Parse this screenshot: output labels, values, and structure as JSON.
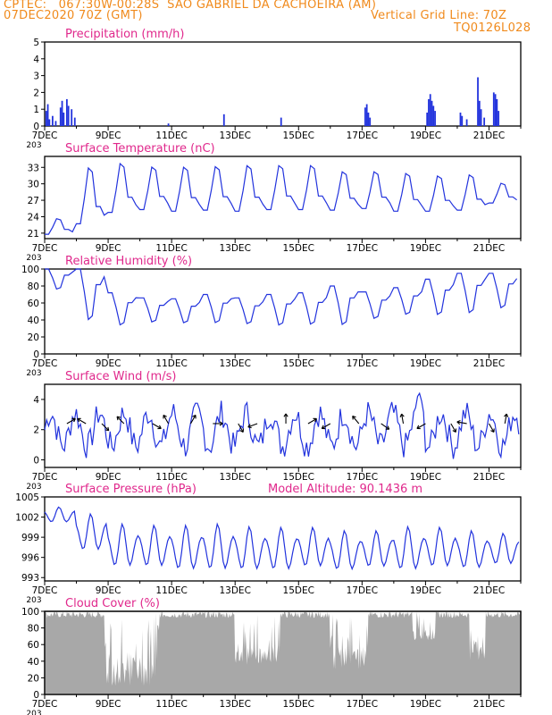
{
  "header": {
    "line1": "CPTEC:   067:30W-00:28S  SAO GABRIEL DA CACHOEIRA (AM)",
    "line2_left": "07DEC2020 70Z (GMT)",
    "line2_right": "Vertical Grid Line: 70Z",
    "line3_right": "TQ0126L028"
  },
  "colors": {
    "header": "#f08a1c",
    "title": "#e0288c",
    "series": "#2233dd",
    "cloud": "#a8a8a8",
    "wind_arrow": "#000000"
  },
  "x_ticks": [
    "7DEC",
    "9DEC",
    "11DEC",
    "13DEC",
    "15DEC",
    "17DEC",
    "19DEC",
    "21DEC"
  ],
  "x_tick_stub": "203",
  "chart_data": [
    {
      "id": "precip",
      "type": "bar",
      "title": "Precipitation (mm/h)",
      "ylim": [
        0,
        5
      ],
      "yticks": [
        "0",
        "1",
        "2",
        "3",
        "4",
        "5"
      ],
      "x_unit": "days since 7DEC2020",
      "spikes": [
        [
          0.05,
          0.9
        ],
        [
          0.1,
          1.3
        ],
        [
          0.15,
          0.4
        ],
        [
          0.25,
          0.6
        ],
        [
          0.35,
          0.3
        ],
        [
          0.5,
          1.1
        ],
        [
          0.55,
          1.5
        ],
        [
          0.6,
          0.8
        ],
        [
          0.7,
          1.6
        ],
        [
          0.75,
          1.2
        ],
        [
          0.85,
          1.0
        ],
        [
          0.95,
          0.5
        ],
        [
          3.9,
          0.15
        ],
        [
          5.65,
          0.7
        ],
        [
          7.45,
          0.5
        ],
        [
          10.1,
          1.1
        ],
        [
          10.15,
          1.3
        ],
        [
          10.2,
          0.8
        ],
        [
          10.25,
          0.5
        ],
        [
          12.05,
          0.8
        ],
        [
          12.1,
          1.6
        ],
        [
          12.15,
          1.9
        ],
        [
          12.2,
          1.5
        ],
        [
          12.25,
          1.2
        ],
        [
          12.3,
          0.9
        ],
        [
          13.1,
          0.8
        ],
        [
          13.15,
          0.6
        ],
        [
          13.3,
          0.4
        ],
        [
          13.65,
          2.9
        ],
        [
          13.7,
          1.5
        ],
        [
          13.75,
          1.0
        ],
        [
          13.85,
          0.5
        ],
        [
          14.15,
          2.0
        ],
        [
          14.2,
          1.9
        ],
        [
          14.25,
          1.6
        ],
        [
          14.3,
          0.9
        ]
      ]
    },
    {
      "id": "temp",
      "type": "line",
      "title": "Surface Temperature (nC)",
      "ylim": [
        20,
        35
      ],
      "yticks": [
        "21",
        "24",
        "27",
        "30",
        "33"
      ],
      "x_unit": "days since 7DEC2020",
      "daily_max": [
        23.8,
        33.5,
        34.2,
        33.5,
        33.5,
        33.6,
        33.8,
        33.8,
        33.8,
        32.6,
        32.6,
        32.3,
        31.8,
        32.0,
        30.3
      ],
      "daily_min": [
        20.8,
        22.7,
        24.8,
        25.3,
        25.0,
        25.2,
        25.0,
        25.3,
        25.3,
        25.2,
        25.5,
        25.0,
        25.0,
        25.2,
        26.5
      ]
    },
    {
      "id": "rh",
      "type": "line",
      "title": "Relative Humidity (%)",
      "ylim": [
        0,
        100
      ],
      "yticks": [
        "0",
        "20",
        "40",
        "60",
        "80",
        "100"
      ],
      "x_unit": "days since 7DEC2020",
      "daily_min": [
        75,
        37,
        32,
        36,
        35,
        35,
        34,
        32,
        33,
        32,
        40,
        45,
        44,
        46,
        52
      ],
      "daily_max": [
        100,
        100,
        72,
        66,
        65,
        70,
        66,
        70,
        72,
        80,
        73,
        78,
        88,
        95,
        95
      ]
    },
    {
      "id": "wind",
      "type": "line",
      "title": "Surface Wind (m/s)",
      "ylim": [
        -0.5,
        5
      ],
      "yticks": [
        "0",
        "2",
        "4"
      ],
      "x_unit": "days since 7DEC2020",
      "speed_mean": 2.0,
      "speed_max": 4.8,
      "arrows": [
        [
          0.7,
          30
        ],
        [
          1.3,
          150
        ],
        [
          1.8,
          -45
        ],
        [
          2.5,
          135
        ],
        [
          3.4,
          -30
        ],
        [
          3.9,
          120
        ],
        [
          4.6,
          60
        ],
        [
          5.3,
          0
        ],
        [
          6.1,
          -60
        ],
        [
          6.7,
          200
        ],
        [
          7.6,
          90
        ],
        [
          8.3,
          30
        ],
        [
          9.0,
          210
        ],
        [
          9.9,
          130
        ],
        [
          10.6,
          -35
        ],
        [
          11.3,
          100
        ],
        [
          12.0,
          210
        ],
        [
          12.8,
          300
        ],
        [
          13.3,
          170
        ],
        [
          14.0,
          300
        ],
        [
          14.5,
          80
        ]
      ]
    },
    {
      "id": "pres",
      "type": "line",
      "title": "Surface Pressure (hPa)",
      "subtitle": "Model Altitude: 90.1436 m",
      "ylim": [
        992.5,
        1005
      ],
      "yticks": [
        "993",
        "996",
        "999",
        "1002",
        "1005"
      ],
      "x_unit": "days since 7DEC2020",
      "semidiurnal_max": [
        1003.5,
        1002.5,
        1001.0,
        1000.8,
        1000.8,
        1001.0,
        1000.6,
        1000.5,
        1000.5,
        1000.0,
        1000.0,
        1000.6,
        1000.5,
        1000.0,
        999.6
      ],
      "semidiurnal_min": [
        1001.0,
        996.5,
        994.0,
        994.0,
        993.5,
        993.5,
        993.5,
        993.5,
        994.0,
        993.5,
        994.0,
        993.5,
        994.0,
        993.8,
        994.5
      ]
    },
    {
      "id": "cloud",
      "type": "area",
      "title": "Cloud Cover (%)",
      "ylim": [
        0,
        100
      ],
      "yticks": [
        "0",
        "20",
        "40",
        "60",
        "80",
        "100"
      ],
      "x_unit": "days since 7DEC2020",
      "low_periods": [
        [
          1.9,
          3.6,
          10
        ],
        [
          6.0,
          7.4,
          35
        ],
        [
          9.0,
          10.2,
          30
        ],
        [
          11.6,
          12.3,
          65
        ],
        [
          13.4,
          13.9,
          40
        ]
      ]
    }
  ]
}
